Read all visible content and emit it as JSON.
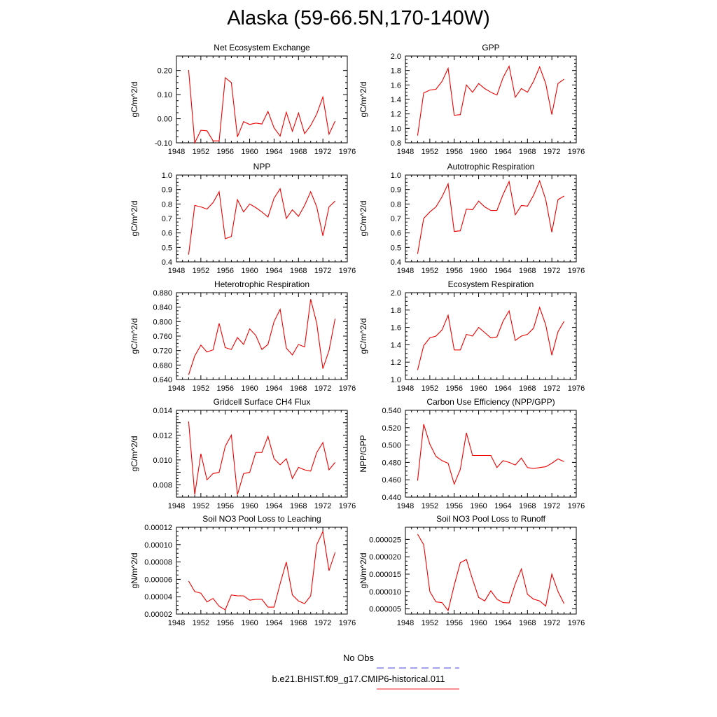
{
  "figure": {
    "title": "Alaska (59-66.5N,170-140W)"
  },
  "legend": {
    "entries": [
      {
        "name": "No Obs",
        "color": "#4444dd",
        "style": "dashed"
      },
      {
        "name": "b.e21.BHIST.f09_g17.CMIP6-historical.011",
        "color": "#ee2222",
        "style": "solid"
      }
    ]
  },
  "colors": {
    "series_line": "#ee0000",
    "axis": "#000000"
  },
  "chart_data": [
    {
      "type": "line",
      "title": "Net Ecosystem Exchange",
      "ylabel": "gC/m^2/d",
      "xlim": [
        1948,
        1976
      ],
      "xticks": [
        1948,
        1952,
        1956,
        1960,
        1964,
        1968,
        1972,
        1976
      ],
      "ylim": [
        -0.1,
        0.26
      ],
      "yticks": [
        "-0.10",
        "0.00",
        "0.10",
        "0.20"
      ],
      "x": [
        1950,
        1951,
        1952,
        1953,
        1954,
        1955,
        1956,
        1957,
        1958,
        1959,
        1960,
        1961,
        1962,
        1963,
        1964,
        1965,
        1966,
        1967,
        1968,
        1969,
        1970,
        1971,
        1972,
        1973,
        1974
      ],
      "values": [
        0.202,
        -0.1,
        -0.048,
        -0.05,
        -0.092,
        -0.092,
        0.17,
        0.15,
        -0.075,
        -0.012,
        -0.024,
        -0.018,
        -0.022,
        0.03,
        -0.038,
        -0.072,
        0.027,
        -0.052,
        0.024,
        -0.062,
        -0.028,
        0.02,
        0.09,
        -0.064,
        -0.01
      ]
    },
    {
      "type": "line",
      "title": "GPP",
      "ylabel": "gC/m^2/d",
      "xlim": [
        1948,
        1976
      ],
      "xticks": [
        1948,
        1952,
        1956,
        1960,
        1964,
        1968,
        1972,
        1976
      ],
      "ylim": [
        0.8,
        2.0
      ],
      "yticks": [
        "0.8",
        "1.0",
        "1.2",
        "1.4",
        "1.6",
        "1.8",
        "2.0"
      ],
      "x": [
        1950,
        1951,
        1952,
        1953,
        1954,
        1955,
        1956,
        1957,
        1958,
        1959,
        1960,
        1961,
        1962,
        1963,
        1964,
        1965,
        1966,
        1967,
        1968,
        1969,
        1970,
        1971,
        1972,
        1973,
        1974
      ],
      "values": [
        0.9,
        1.49,
        1.53,
        1.54,
        1.65,
        1.83,
        1.18,
        1.19,
        1.6,
        1.5,
        1.62,
        1.55,
        1.5,
        1.46,
        1.7,
        1.86,
        1.43,
        1.55,
        1.5,
        1.65,
        1.85,
        1.62,
        1.19,
        1.62,
        1.68
      ]
    },
    {
      "type": "line",
      "title": "NPP",
      "ylabel": "gC/m^2/d",
      "xlim": [
        1948,
        1976
      ],
      "xticks": [
        1948,
        1952,
        1956,
        1960,
        1964,
        1968,
        1972,
        1976
      ],
      "ylim": [
        0.4,
        1.0
      ],
      "yticks": [
        "0.4",
        "0.5",
        "0.6",
        "0.7",
        "0.8",
        "0.9",
        "1.0"
      ],
      "x": [
        1950,
        1951,
        1952,
        1953,
        1954,
        1955,
        1956,
        1957,
        1958,
        1959,
        1960,
        1961,
        1962,
        1963,
        1964,
        1965,
        1966,
        1967,
        1968,
        1969,
        1970,
        1971,
        1972,
        1973,
        1974
      ],
      "values": [
        0.45,
        0.79,
        0.78,
        0.765,
        0.81,
        0.885,
        0.56,
        0.575,
        0.83,
        0.745,
        0.8,
        0.775,
        0.745,
        0.71,
        0.84,
        0.905,
        0.7,
        0.76,
        0.715,
        0.79,
        0.885,
        0.78,
        0.58,
        0.78,
        0.82
      ]
    },
    {
      "type": "line",
      "title": "Autotrophic Respiration",
      "ylabel": "gC/m^2/d",
      "xlim": [
        1948,
        1976
      ],
      "xticks": [
        1948,
        1952,
        1956,
        1960,
        1964,
        1968,
        1972,
        1976
      ],
      "ylim": [
        0.4,
        1.0
      ],
      "yticks": [
        "0.4",
        "0.5",
        "0.6",
        "0.7",
        "0.8",
        "0.9",
        "1.0"
      ],
      "x": [
        1950,
        1951,
        1952,
        1953,
        1954,
        1955,
        1956,
        1957,
        1958,
        1959,
        1960,
        1961,
        1962,
        1963,
        1964,
        1965,
        1966,
        1967,
        1968,
        1969,
        1970,
        1971,
        1972,
        1973,
        1974
      ],
      "values": [
        0.455,
        0.7,
        0.745,
        0.78,
        0.85,
        0.94,
        0.61,
        0.615,
        0.765,
        0.76,
        0.82,
        0.78,
        0.755,
        0.755,
        0.865,
        0.955,
        0.725,
        0.79,
        0.785,
        0.86,
        0.96,
        0.83,
        0.605,
        0.83,
        0.855
      ]
    },
    {
      "type": "line",
      "title": "Heterotrophic Respiration",
      "ylabel": "gC/m^2/d",
      "xlim": [
        1948,
        1976
      ],
      "xticks": [
        1948,
        1952,
        1956,
        1960,
        1964,
        1968,
        1972,
        1976
      ],
      "ylim": [
        0.64,
        0.88
      ],
      "yticks": [
        "0.640",
        "0.680",
        "0.720",
        "0.760",
        "0.800",
        "0.840",
        "0.880"
      ],
      "x": [
        1950,
        1951,
        1952,
        1953,
        1954,
        1955,
        1956,
        1957,
        1958,
        1959,
        1960,
        1961,
        1962,
        1963,
        1964,
        1965,
        1966,
        1967,
        1968,
        1969,
        1970,
        1971,
        1972,
        1973,
        1974
      ],
      "values": [
        0.653,
        0.705,
        0.735,
        0.716,
        0.722,
        0.795,
        0.728,
        0.723,
        0.756,
        0.737,
        0.78,
        0.762,
        0.723,
        0.737,
        0.8,
        0.834,
        0.727,
        0.708,
        0.737,
        0.73,
        0.862,
        0.795,
        0.67,
        0.72,
        0.808
      ]
    },
    {
      "type": "line",
      "title": "Ecosystem Respiration",
      "ylabel": "gC/m^2/d",
      "xlim": [
        1948,
        1976
      ],
      "xticks": [
        1948,
        1952,
        1956,
        1960,
        1964,
        1968,
        1972,
        1976
      ],
      "ylim": [
        1.0,
        2.0
      ],
      "yticks": [
        "1.0",
        "1.2",
        "1.4",
        "1.6",
        "1.8",
        "2.0"
      ],
      "x": [
        1950,
        1951,
        1952,
        1953,
        1954,
        1955,
        1956,
        1957,
        1958,
        1959,
        1960,
        1961,
        1962,
        1963,
        1964,
        1965,
        1966,
        1967,
        1968,
        1969,
        1970,
        1971,
        1972,
        1973,
        1974
      ],
      "values": [
        1.11,
        1.39,
        1.48,
        1.5,
        1.57,
        1.74,
        1.34,
        1.34,
        1.52,
        1.5,
        1.6,
        1.54,
        1.48,
        1.49,
        1.67,
        1.79,
        1.45,
        1.5,
        1.52,
        1.59,
        1.83,
        1.63,
        1.28,
        1.55,
        1.67
      ]
    },
    {
      "type": "line",
      "title": "Gridcell Surface CH4 Flux",
      "ylabel": "gC/m^2/d",
      "xlim": [
        1948,
        1976
      ],
      "xticks": [
        1948,
        1952,
        1956,
        1960,
        1964,
        1968,
        1972,
        1976
      ],
      "ylim": [
        0.007,
        0.014
      ],
      "yticks": [
        "",
        "0.008",
        "",
        "0.010",
        "",
        "0.012",
        "",
        "0.014"
      ],
      "ytick_values": [
        0.007,
        0.008,
        0.009,
        0.01,
        0.011,
        0.012,
        0.013,
        0.014
      ],
      "x": [
        1950,
        1951,
        1952,
        1953,
        1954,
        1955,
        1956,
        1957,
        1958,
        1959,
        1960,
        1961,
        1962,
        1963,
        1964,
        1965,
        1966,
        1967,
        1968,
        1969,
        1970,
        1971,
        1972,
        1973,
        1974
      ],
      "values": [
        0.0131,
        0.0072,
        0.0105,
        0.0084,
        0.0089,
        0.009,
        0.0111,
        0.012,
        0.0072,
        0.0089,
        0.009,
        0.0106,
        0.0106,
        0.0119,
        0.0101,
        0.0096,
        0.0101,
        0.0085,
        0.0094,
        0.0092,
        0.0091,
        0.0106,
        0.0114,
        0.0092,
        0.0098
      ]
    },
    {
      "type": "line",
      "title": "Carbon Use Efficiency (NPP/GPP)",
      "ylabel": "NPP/GPP",
      "xlim": [
        1948,
        1976
      ],
      "xticks": [
        1948,
        1952,
        1956,
        1960,
        1964,
        1968,
        1972,
        1976
      ],
      "ylim": [
        0.44,
        0.54
      ],
      "yticks": [
        "0.440",
        "0.460",
        "0.480",
        "0.500",
        "0.520",
        "0.540"
      ],
      "x": [
        1950,
        1951,
        1952,
        1953,
        1954,
        1955,
        1956,
        1957,
        1958,
        1959,
        1960,
        1961,
        1962,
        1963,
        1964,
        1965,
        1966,
        1967,
        1968,
        1969,
        1970,
        1971,
        1972,
        1973,
        1974
      ],
      "values": [
        0.459,
        0.524,
        0.501,
        0.487,
        0.482,
        0.479,
        0.455,
        0.472,
        0.514,
        0.488,
        0.488,
        0.488,
        0.488,
        0.474,
        0.482,
        0.48,
        0.477,
        0.485,
        0.474,
        0.473,
        0.474,
        0.475,
        0.479,
        0.484,
        0.481
      ]
    },
    {
      "type": "line",
      "title": "Soil NO3 Pool Loss to Leaching",
      "ylabel": "gN/m^2/d",
      "xlim": [
        1948,
        1976
      ],
      "xticks": [
        1948,
        1952,
        1956,
        1960,
        1964,
        1968,
        1972,
        1976
      ],
      "ylim": [
        2e-05,
        0.00012
      ],
      "yticks": [
        "0.00002",
        "0.00004",
        "0.00006",
        "0.00008",
        "0.00010",
        "0.00012"
      ],
      "x": [
        1950,
        1951,
        1952,
        1953,
        1954,
        1955,
        1956,
        1957,
        1958,
        1959,
        1960,
        1961,
        1962,
        1963,
        1964,
        1965,
        1966,
        1967,
        1968,
        1969,
        1970,
        1971,
        1972,
        1973,
        1974
      ],
      "values": [
        5.8e-05,
        4.6e-05,
        4.4e-05,
        3.4e-05,
        3.8e-05,
        2.9e-05,
        2.5e-05,
        4.2e-05,
        4.1e-05,
        4.1e-05,
        3.6e-05,
        3.7e-05,
        3.7e-05,
        2.8e-05,
        2.8e-05,
        5.5e-05,
        8e-05,
        4.2e-05,
        3.5e-05,
        3.2e-05,
        4.1e-05,
        0.0001,
        0.000115,
        7e-05,
        9.1e-05
      ]
    },
    {
      "type": "line",
      "title": "Soil NO3 Pool Loss to Runoff",
      "ylabel": "gN/m^2/d",
      "xlim": [
        1948,
        1976
      ],
      "xticks": [
        1948,
        1952,
        1956,
        1960,
        1964,
        1968,
        1972,
        1976
      ],
      "ylim": [
        3.5e-06,
        2.85e-05
      ],
      "yticks": [
        "0.000005",
        "0.000010",
        "0.000015",
        "0.000020",
        "0.000025"
      ],
      "ytick_values": [
        5e-06,
        1e-05,
        1.5e-05,
        2e-05,
        2.5e-05
      ],
      "x": [
        1950,
        1951,
        1952,
        1953,
        1954,
        1955,
        1956,
        1957,
        1958,
        1959,
        1960,
        1961,
        1962,
        1963,
        1964,
        1965,
        1966,
        1967,
        1968,
        1969,
        1970,
        1971,
        1972,
        1973,
        1974
      ],
      "values": [
        2.65e-05,
        2.35e-05,
        1e-05,
        7e-06,
        6.8e-06,
        4.5e-06,
        1.18e-05,
        1.83e-05,
        1.92e-05,
        1.35e-05,
        8.3e-06,
        7.3e-06,
        1.02e-05,
        7.8e-06,
        6.8e-06,
        6.7e-06,
        1.22e-05,
        1.65e-05,
        9.2e-06,
        7.8e-06,
        7.3e-06,
        5.8e-06,
        1.5e-05,
        1e-05,
        6.5e-06
      ]
    }
  ]
}
